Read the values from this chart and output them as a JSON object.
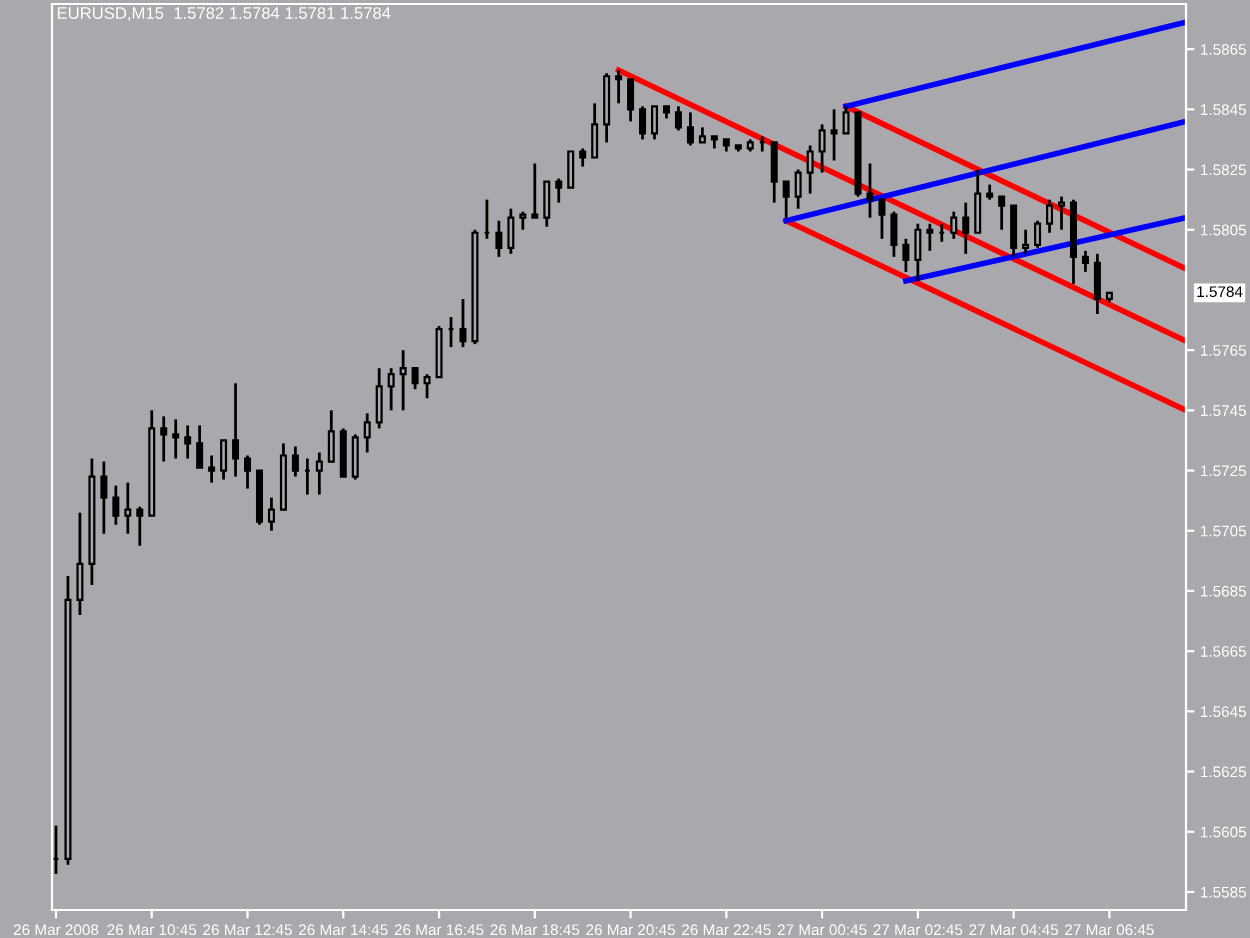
{
  "chart_data": {
    "type": "candlestick",
    "title": "EURUSD,M15  1.5782 1.5784 1.5781 1.5784",
    "color": "#000000",
    "x": [
      "2008-03-26T08:45",
      "2008-03-26T09:00",
      "2008-03-26T09:15",
      "2008-03-26T09:30",
      "2008-03-26T09:45",
      "2008-03-26T10:00",
      "2008-03-26T10:15",
      "2008-03-26T10:30",
      "2008-03-26T10:45",
      "2008-03-26T11:00",
      "2008-03-26T11:15",
      "2008-03-26T11:30",
      "2008-03-26T11:45",
      "2008-03-26T12:00",
      "2008-03-26T12:15",
      "2008-03-26T12:30",
      "2008-03-26T12:45",
      "2008-03-26T13:00",
      "2008-03-26T13:15",
      "2008-03-26T13:30",
      "2008-03-26T13:45",
      "2008-03-26T14:00",
      "2008-03-26T14:15",
      "2008-03-26T14:30",
      "2008-03-26T14:45",
      "2008-03-26T15:00",
      "2008-03-26T15:15",
      "2008-03-26T15:30",
      "2008-03-26T15:45",
      "2008-03-26T16:00",
      "2008-03-26T16:15",
      "2008-03-26T16:30",
      "2008-03-26T16:45",
      "2008-03-26T17:00",
      "2008-03-26T17:15",
      "2008-03-26T17:30",
      "2008-03-26T17:45",
      "2008-03-26T18:00",
      "2008-03-26T18:15",
      "2008-03-26T18:30",
      "2008-03-26T18:45",
      "2008-03-26T19:00",
      "2008-03-26T19:15",
      "2008-03-26T19:30",
      "2008-03-26T19:45",
      "2008-03-26T20:00",
      "2008-03-26T20:15",
      "2008-03-26T20:30",
      "2008-03-26T20:45",
      "2008-03-26T21:00",
      "2008-03-26T21:15",
      "2008-03-26T21:30",
      "2008-03-26T21:45",
      "2008-03-26T22:00",
      "2008-03-26T22:15",
      "2008-03-26T22:30",
      "2008-03-26T22:45",
      "2008-03-26T23:00",
      "2008-03-26T23:15",
      "2008-03-26T23:30",
      "2008-03-26T23:45",
      "2008-03-27T00:00",
      "2008-03-27T00:15",
      "2008-03-27T00:30",
      "2008-03-27T00:45",
      "2008-03-27T01:00",
      "2008-03-27T01:15",
      "2008-03-27T01:30",
      "2008-03-27T01:45",
      "2008-03-27T02:00",
      "2008-03-27T02:15",
      "2008-03-27T02:30",
      "2008-03-27T02:45",
      "2008-03-27T03:00",
      "2008-03-27T03:15",
      "2008-03-27T03:30",
      "2008-03-27T03:45",
      "2008-03-27T04:00",
      "2008-03-27T04:15",
      "2008-03-27T04:30",
      "2008-03-27T04:45",
      "2008-03-27T05:00",
      "2008-03-27T05:15",
      "2008-03-27T05:30",
      "2008-03-27T05:45",
      "2008-03-27T06:00",
      "2008-03-27T06:15",
      "2008-03-27T06:30",
      "2008-03-27T06:45"
    ],
    "ohlc": [
      [
        1.5596,
        1.5607,
        1.5591,
        1.5596
      ],
      [
        1.5596,
        1.569,
        1.5594,
        1.5682
      ],
      [
        1.5682,
        1.5711,
        1.5677,
        1.5694
      ],
      [
        1.5694,
        1.5729,
        1.5687,
        1.5723
      ],
      [
        1.5723,
        1.5728,
        1.5704,
        1.5716
      ],
      [
        1.5716,
        1.572,
        1.5707,
        1.571
      ],
      [
        1.571,
        1.5721,
        1.5704,
        1.5712
      ],
      [
        1.5712,
        1.5713,
        1.57,
        1.571
      ],
      [
        1.571,
        1.5745,
        1.571,
        1.5739
      ],
      [
        1.5739,
        1.5743,
        1.5728,
        1.5737
      ],
      [
        1.5737,
        1.5742,
        1.5729,
        1.5736
      ],
      [
        1.5736,
        1.574,
        1.5729,
        1.5734
      ],
      [
        1.5734,
        1.574,
        1.5726,
        1.5726
      ],
      [
        1.5726,
        1.573,
        1.5721,
        1.5725
      ],
      [
        1.5725,
        1.5735,
        1.5722,
        1.5735
      ],
      [
        1.5735,
        1.5754,
        1.5723,
        1.5729
      ],
      [
        1.5729,
        1.573,
        1.5719,
        1.5725
      ],
      [
        1.5725,
        1.5725,
        1.5707,
        1.5708
      ],
      [
        1.5708,
        1.5716,
        1.5705,
        1.5712
      ],
      [
        1.5712,
        1.5734,
        1.5712,
        1.573
      ],
      [
        1.573,
        1.5733,
        1.5723,
        1.5725
      ],
      [
        1.5725,
        1.5729,
        1.5717,
        1.5725
      ],
      [
        1.5725,
        1.5731,
        1.5717,
        1.5728
      ],
      [
        1.5728,
        1.5745,
        1.5728,
        1.5738
      ],
      [
        1.5738,
        1.5739,
        1.5723,
        1.5723
      ],
      [
        1.5723,
        1.5737,
        1.5722,
        1.5736
      ],
      [
        1.5736,
        1.5744,
        1.5731,
        1.5741
      ],
      [
        1.5741,
        1.5759,
        1.5739,
        1.5753
      ],
      [
        1.5753,
        1.5759,
        1.5745,
        1.5757
      ],
      [
        1.5757,
        1.5765,
        1.5745,
        1.5759
      ],
      [
        1.5759,
        1.5759,
        1.5752,
        1.5754
      ],
      [
        1.5754,
        1.5757,
        1.5749,
        1.5756
      ],
      [
        1.5756,
        1.5773,
        1.5756,
        1.5772
      ],
      [
        1.5772,
        1.5776,
        1.5766,
        1.5772
      ],
      [
        1.5772,
        1.5782,
        1.5766,
        1.5768
      ],
      [
        1.5768,
        1.5805,
        1.5767,
        1.5804
      ],
      [
        1.5804,
        1.5815,
        1.5802,
        1.5804
      ],
      [
        1.5804,
        1.5808,
        1.5796,
        1.5799
      ],
      [
        1.5799,
        1.5812,
        1.5797,
        1.5809
      ],
      [
        1.5809,
        1.5811,
        1.5805,
        1.581
      ],
      [
        1.581,
        1.5827,
        1.5809,
        1.5809
      ],
      [
        1.5809,
        1.5821,
        1.5806,
        1.5821
      ],
      [
        1.5821,
        1.5822,
        1.5814,
        1.5819
      ],
      [
        1.5819,
        1.5831,
        1.5819,
        1.5831
      ],
      [
        1.5831,
        1.5832,
        1.5826,
        1.5829
      ],
      [
        1.5829,
        1.5847,
        1.5829,
        1.584
      ],
      [
        1.584,
        1.5857,
        1.5834,
        1.5856
      ],
      [
        1.5856,
        1.5858,
        1.5847,
        1.5855
      ],
      [
        1.5855,
        1.5855,
        1.5841,
        1.5845
      ],
      [
        1.5845,
        1.5846,
        1.5835,
        1.5837
      ],
      [
        1.5837,
        1.5846,
        1.5835,
        1.5846
      ],
      [
        1.5846,
        1.5846,
        1.5842,
        1.5844
      ],
      [
        1.5844,
        1.5846,
        1.5838,
        1.5839
      ],
      [
        1.5839,
        1.5844,
        1.5833,
        1.5834
      ],
      [
        1.5834,
        1.5839,
        1.5834,
        1.5836
      ],
      [
        1.5836,
        1.5836,
        1.5832,
        1.5835
      ],
      [
        1.5835,
        1.5835,
        1.5831,
        1.5833
      ],
      [
        1.5833,
        1.5833,
        1.5831,
        1.5832
      ],
      [
        1.5832,
        1.5835,
        1.5831,
        1.5834
      ],
      [
        1.5834,
        1.5836,
        1.5831,
        1.5834
      ],
      [
        1.5834,
        1.5834,
        1.5814,
        1.5821
      ],
      [
        1.5821,
        1.5821,
        1.5809,
        1.5816
      ],
      [
        1.5816,
        1.5825,
        1.5812,
        1.5824
      ],
      [
        1.5824,
        1.5833,
        1.5817,
        1.5831
      ],
      [
        1.5831,
        1.584,
        1.5824,
        1.5838
      ],
      [
        1.5838,
        1.5845,
        1.5828,
        1.5837
      ],
      [
        1.5837,
        1.5846,
        1.5837,
        1.5844
      ],
      [
        1.5844,
        1.5844,
        1.5816,
        1.5817
      ],
      [
        1.5817,
        1.5827,
        1.5809,
        1.5815
      ],
      [
        1.5815,
        1.5815,
        1.5802,
        1.581
      ],
      [
        1.581,
        1.5811,
        1.5796,
        1.58
      ],
      [
        1.58,
        1.5802,
        1.5791,
        1.5795
      ],
      [
        1.5795,
        1.5807,
        1.5788,
        1.5805
      ],
      [
        1.5805,
        1.5807,
        1.5798,
        1.5804
      ],
      [
        1.5804,
        1.5807,
        1.5801,
        1.5804
      ],
      [
        1.5804,
        1.5811,
        1.5802,
        1.5809
      ],
      [
        1.5809,
        1.5814,
        1.5797,
        1.5804
      ],
      [
        1.5804,
        1.5825,
        1.5804,
        1.5817
      ],
      [
        1.5817,
        1.582,
        1.5815,
        1.5816
      ],
      [
        1.5816,
        1.5816,
        1.5805,
        1.5813
      ],
      [
        1.5813,
        1.5813,
        1.5796,
        1.5799
      ],
      [
        1.5799,
        1.5805,
        1.5797,
        1.58
      ],
      [
        1.58,
        1.5808,
        1.5799,
        1.5807
      ],
      [
        1.5807,
        1.5815,
        1.5804,
        1.5813
      ],
      [
        1.5813,
        1.5816,
        1.5805,
        1.5814
      ],
      [
        1.5814,
        1.5815,
        1.5787,
        1.5796
      ],
      [
        1.5796,
        1.5798,
        1.5791,
        1.5794
      ],
      [
        1.5794,
        1.5797,
        1.5777,
        1.5782
      ],
      [
        1.5782,
        1.5784,
        1.5781,
        1.5784
      ]
    ],
    "series": [
      {
        "type": "line",
        "color": "#ff0000",
        "x": [
          "2008-03-26T20:30",
          "2008-03-27T08:21"
        ],
        "values": [
          1.5858,
          1.5768
        ]
      },
      {
        "type": "line",
        "color": "#ff0000",
        "x": [
          "2008-03-27T01:15",
          "2008-03-27T08:21"
        ],
        "values": [
          1.5846,
          1.5792
        ]
      },
      {
        "type": "line",
        "color": "#ff0000",
        "x": [
          "2008-03-27T00:00",
          "2008-03-27T08:21"
        ],
        "values": [
          1.5808,
          1.5745
        ]
      },
      {
        "type": "line",
        "color": "#0000ff",
        "x": [
          "2008-03-27T01:15",
          "2008-03-27T08:21"
        ],
        "values": [
          1.5846,
          1.5874
        ]
      },
      {
        "type": "line",
        "color": "#0000ff",
        "x": [
          "2008-03-27T00:00",
          "2008-03-27T08:21"
        ],
        "values": [
          1.5808,
          1.5841
        ]
      },
      {
        "type": "line",
        "color": "#0000ff",
        "x": [
          "2008-03-27T02:30",
          "2008-03-27T08:21"
        ],
        "values": [
          1.5788,
          1.5809
        ]
      }
    ],
    "xlim": [
      "2008-03-26T08:40",
      "2008-03-27T08:21"
    ],
    "ylim": [
      1.5579,
      1.588
    ],
    "xticks": [
      {
        "value": "2008-03-26T08:45",
        "label": "26 Mar 2008"
      },
      {
        "value": "2008-03-26T10:45",
        "label": "26 Mar 10:45"
      },
      {
        "value": "2008-03-26T12:45",
        "label": "26 Mar 12:45"
      },
      {
        "value": "2008-03-26T14:45",
        "label": "26 Mar 14:45"
      },
      {
        "value": "2008-03-26T16:45",
        "label": "26 Mar 16:45"
      },
      {
        "value": "2008-03-26T18:45",
        "label": "26 Mar 18:45"
      },
      {
        "value": "2008-03-26T20:45",
        "label": "26 Mar 20:45"
      },
      {
        "value": "2008-03-26T22:45",
        "label": "26 Mar 22:45"
      },
      {
        "value": "2008-03-27T00:45",
        "label": "27 Mar 00:45"
      },
      {
        "value": "2008-03-27T02:45",
        "label": "27 Mar 02:45"
      },
      {
        "value": "2008-03-27T04:45",
        "label": "27 Mar 04:45"
      },
      {
        "value": "2008-03-27T06:45",
        "label": "27 Mar 06:45"
      }
    ],
    "annotations": [
      "1.5784"
    ],
    "yticks": [
      1.5865,
      1.5845,
      1.5825,
      1.5805,
      1.5765,
      1.5745,
      1.5725,
      1.5705,
      1.5685,
      1.5665,
      1.5645,
      1.5625,
      1.5605,
      1.5585
    ],
    "grid": false,
    "legend": false
  }
}
